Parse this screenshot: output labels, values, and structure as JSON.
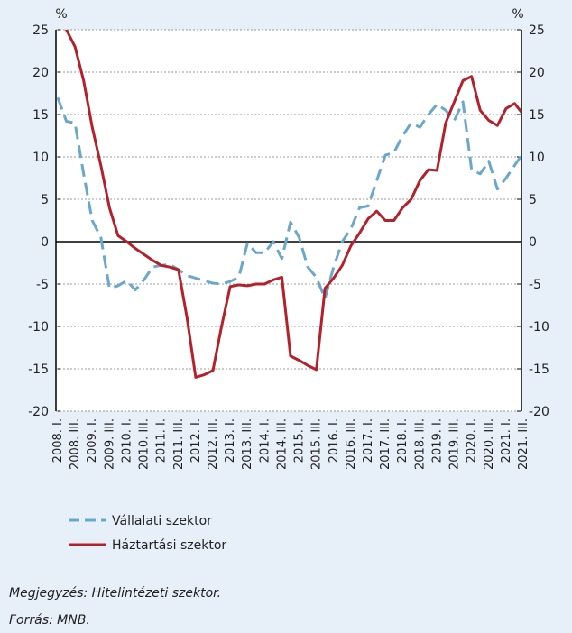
{
  "chart_data": {
    "type": "line",
    "y_label": "%",
    "y2_label": "%",
    "categories": [
      "2008. I.",
      null,
      "2008. III.",
      null,
      "2009. I.",
      null,
      "2009. III.",
      null,
      "2010. I.",
      null,
      "2010. III.",
      null,
      "2011. I.",
      null,
      "2011. III.",
      null,
      "2012. I.",
      null,
      "2012. III.",
      null,
      "2013. I.",
      null,
      "2013. III.",
      null,
      "2014. I.",
      null,
      "2014. III.",
      null,
      "2015. I.",
      null,
      "2015. III.",
      null,
      "2016. I.",
      null,
      "2016. III.",
      null,
      "2017. I.",
      null,
      "2017. III.",
      null,
      "2018. I.",
      null,
      "2018. III.",
      null,
      "2019. I.",
      null,
      "2019. III.",
      null,
      "2020. I.",
      null,
      "2020. III.",
      null,
      "2021. I.",
      null,
      "2021. III."
    ],
    "series": [
      {
        "name": "Vállalati szektor",
        "color": "#6aa7cc",
        "dash": true,
        "values": [
          17,
          14.2,
          14,
          8,
          2.5,
          0.5,
          -5.5,
          -5.2,
          -4.6,
          -5.7,
          -4.5,
          -3,
          -2.8,
          -2.7,
          -3.3,
          -4,
          -4.3,
          -4.6,
          -4.9,
          -5,
          -4.7,
          -4.2,
          -0.2,
          -1.3,
          -1.3,
          0,
          -2,
          2.3,
          0.5,
          -3,
          -4.2,
          -6.7,
          -3,
          0,
          1.5,
          4,
          4.2,
          7.2,
          10.2,
          10.5,
          12.5,
          14,
          13.5,
          15,
          16.2,
          15.5,
          14.3,
          16.5,
          8.5,
          8,
          9.5,
          6.2,
          7.5,
          9,
          10.5
        ]
      },
      {
        "name": "Háztartási szektor",
        "color": "#b5212b",
        "dash": false,
        "values": [
          27,
          25,
          23,
          19,
          13.5,
          9,
          4,
          0.7,
          0,
          -0.8,
          -1.5,
          -2.2,
          -2.8,
          -3,
          -3.3,
          -9,
          -16,
          -15.7,
          -15.2,
          -10,
          -5.3,
          -5.1,
          -5.2,
          -5,
          -5,
          -4.5,
          -4.2,
          -13.5,
          -14,
          -14.6,
          -15.1,
          -5.5,
          -4.3,
          -2.8,
          -0.5,
          1,
          2.7,
          3.6,
          2.5,
          2.5,
          4,
          5,
          7.2,
          8.5,
          8.4,
          14,
          16.5,
          19,
          19.5,
          15.5,
          14.3,
          13.7,
          15.7,
          16.3,
          15
        ]
      }
    ],
    "ylim": [
      -20,
      25
    ],
    "yticks": [
      -20,
      -15,
      -10,
      -5,
      0,
      5,
      10,
      15,
      20,
      25
    ],
    "y2lim": [
      -20,
      25
    ],
    "y2ticks": [
      -20,
      -15,
      -10,
      -5,
      0,
      5,
      10,
      15,
      20,
      25
    ],
    "grid": true,
    "notes": [
      "Megjegyzés: Hitelintézeti szektor.",
      "Forrás: MNB."
    ]
  }
}
